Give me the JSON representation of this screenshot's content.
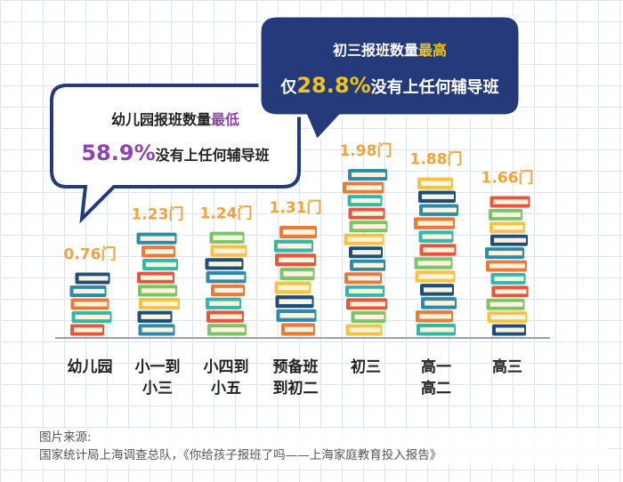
{
  "chart_data": {
    "type": "bar",
    "categories": [
      [
        "幼儿园"
      ],
      [
        "小一到",
        "小三"
      ],
      [
        "小四到",
        "小五"
      ],
      [
        "预备班",
        "到初二"
      ],
      [
        "初三"
      ],
      [
        "高一",
        "高二"
      ],
      [
        "高三"
      ]
    ],
    "values": [
      0.76,
      1.23,
      1.24,
      1.31,
      1.98,
      1.88,
      1.66
    ],
    "value_labels": [
      "0.76门",
      "1.23门",
      "1.24门",
      "1.31门",
      "1.98门",
      "1.88门",
      "1.66门"
    ],
    "ylim": [
      0,
      2.2
    ]
  },
  "callouts": {
    "left": {
      "line1_prefix": "幼儿园报班数量",
      "line1_emph": "最低",
      "line2_emph": "58.9%",
      "line2_suffix": "没有上任何辅导班"
    },
    "right": {
      "line1_prefix": "初三报班数量",
      "line1_emph": "最高",
      "line2_prefix": "仅",
      "line2_emph": "28.8%",
      "line2_suffix": "没有上任何辅导班"
    }
  },
  "source": {
    "label": "图片来源:",
    "text": "国家统计局上海调查总队，《你给孩子报班了吗——上海家庭教育投入报告》"
  },
  "colors": {
    "value_label": "#f2a33a",
    "left_emph": "#8e44ad",
    "right_emph": "#f0c419",
    "right_bubble_bg": "#243a7a",
    "bubble_border": "#243a7a",
    "book_colors": [
      "#e8553c",
      "#f5c342",
      "#2e8ba8",
      "#33b8a6",
      "#7cc36a",
      "#1f4e79",
      "#ea7a3a"
    ]
  }
}
